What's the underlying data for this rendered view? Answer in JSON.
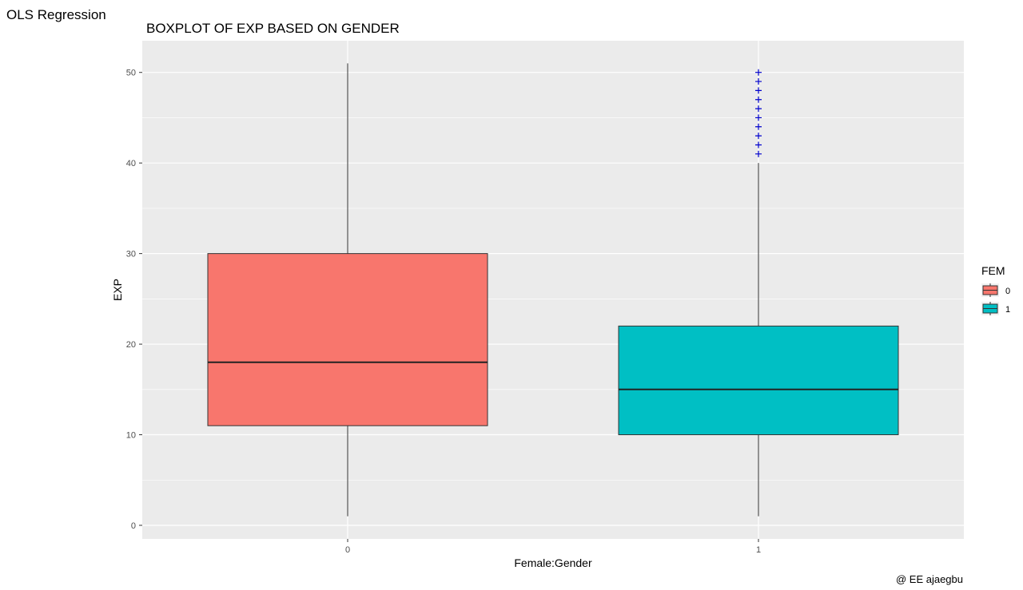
{
  "app_title": "OLS Regression",
  "credit": "@ EE ajaegbu",
  "chart_data": {
    "type": "boxplot",
    "title": "BOXPLOT OF EXP BASED ON GENDER",
    "xlabel": "Female:Gender",
    "ylabel": "EXP",
    "categories": [
      "0",
      "1"
    ],
    "ylim": [
      -1.5,
      53.5
    ],
    "yticks": [
      0,
      10,
      20,
      30,
      40,
      50
    ],
    "grid": true,
    "legend": {
      "title": "FEM",
      "position": "right",
      "entries": [
        "0",
        "1"
      ]
    },
    "colors": {
      "0": "#F8766D",
      "1": "#00BFC4",
      "outlier": "#0000CD",
      "panel": "#EBEBEB",
      "grid": "#FFFFFF"
    },
    "boxes": [
      {
        "category": "0",
        "min": 1,
        "q1": 11,
        "median": 18,
        "q3": 30,
        "max": 51,
        "outliers": []
      },
      {
        "category": "1",
        "min": 1,
        "q1": 10,
        "median": 15,
        "q3": 22,
        "max": 40,
        "outliers": [
          41,
          42,
          43,
          44,
          45,
          46,
          47,
          48,
          49,
          50
        ]
      }
    ]
  }
}
